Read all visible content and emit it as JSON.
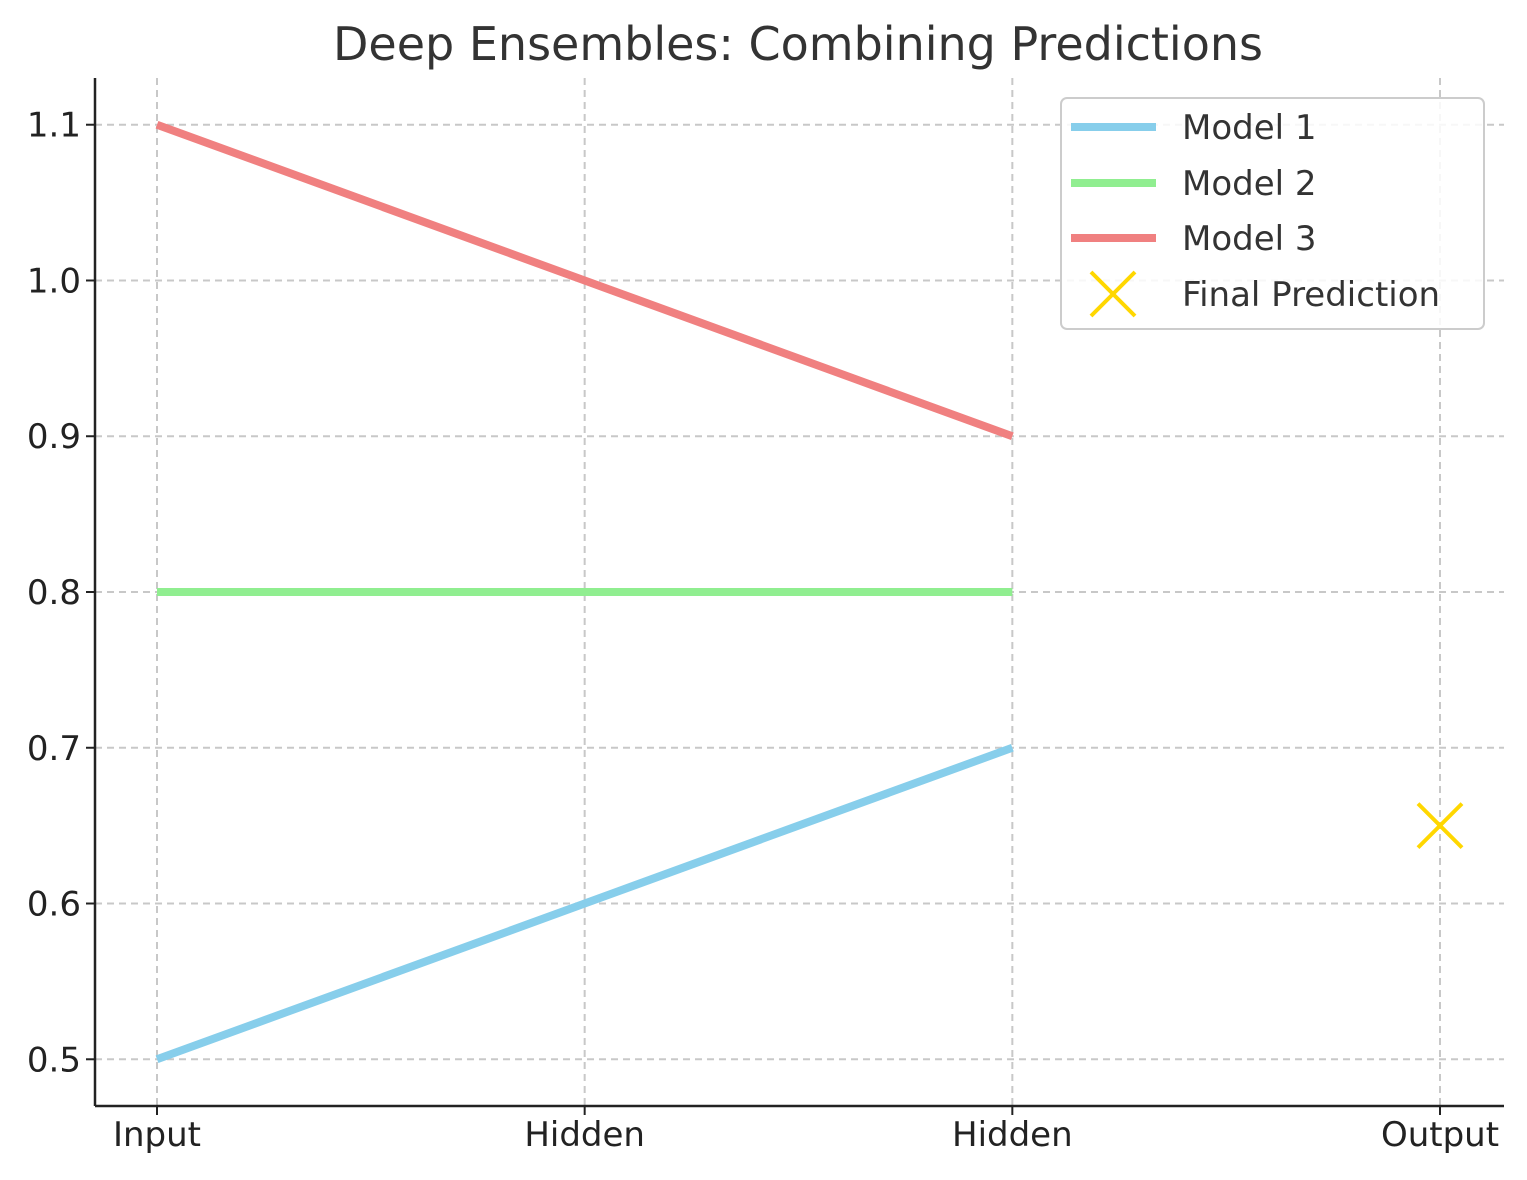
{
  "chart_data": {
    "type": "line",
    "title": "Deep Ensembles: Combining Predictions",
    "xlabel": "",
    "ylabel": "",
    "categories": [
      "Input",
      "Hidden",
      "Hidden",
      "Output"
    ],
    "ylim": [
      0.47,
      1.13
    ],
    "yticks": [
      0.5,
      0.6,
      0.7,
      0.8,
      0.9,
      1.0,
      1.1
    ],
    "ytick_labels": [
      "0.5",
      "0.6",
      "0.7",
      "0.8",
      "0.9",
      "1.0",
      "1.1"
    ],
    "grid": true,
    "legend_position": "top-right",
    "series": [
      {
        "name": "Model 1",
        "kind": "line",
        "color": "#87CEEB",
        "x": [
          0,
          1,
          2
        ],
        "values": [
          0.5,
          0.6,
          0.7
        ]
      },
      {
        "name": "Model 2",
        "kind": "line",
        "color": "#90EE90",
        "x": [
          0,
          1,
          2
        ],
        "values": [
          0.8,
          0.8,
          0.8
        ]
      },
      {
        "name": "Model 3",
        "kind": "line",
        "color": "#F08080",
        "x": [
          0,
          1,
          2
        ],
        "values": [
          1.1,
          1.0,
          0.9
        ]
      },
      {
        "name": "Final Prediction",
        "kind": "marker",
        "marker": "x",
        "color": "#FFD700",
        "x": [
          3
        ],
        "values": [
          0.65
        ]
      }
    ]
  }
}
